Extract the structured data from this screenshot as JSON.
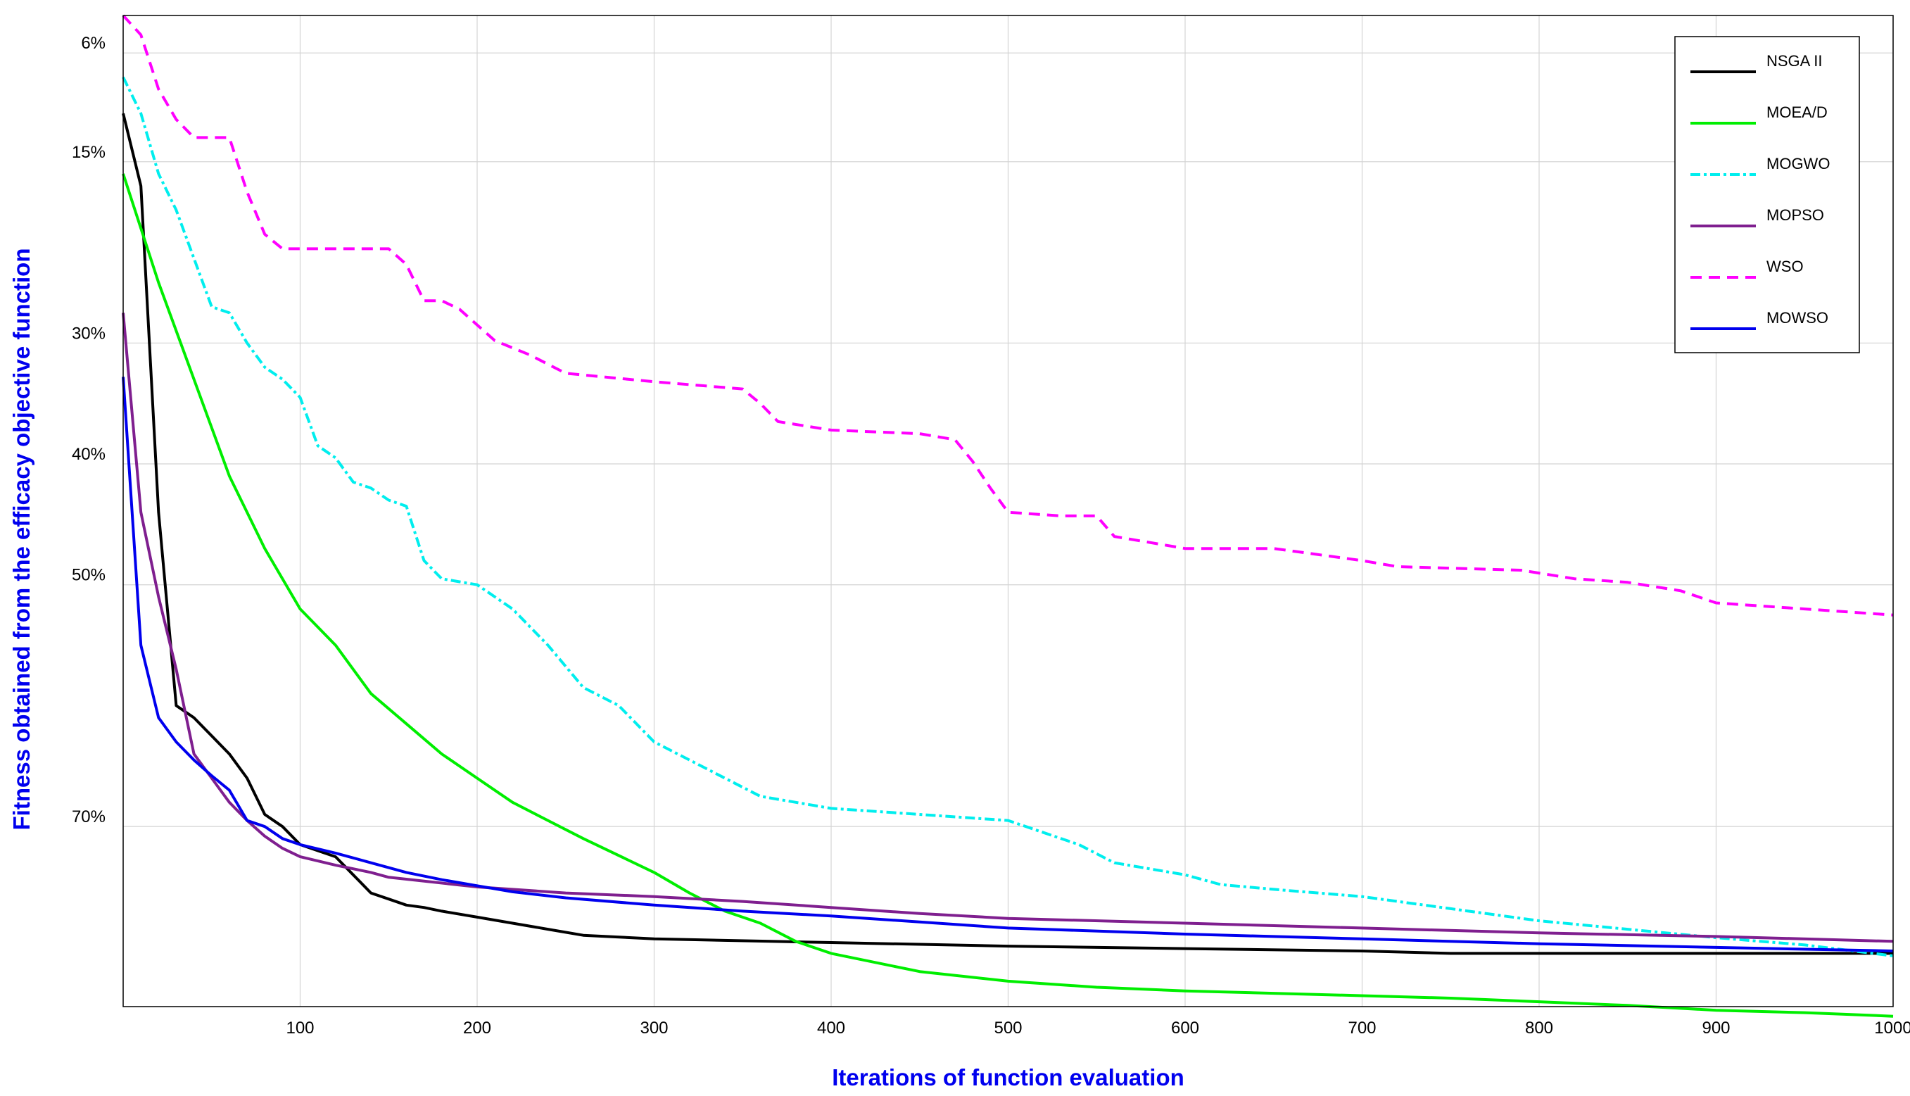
{
  "chart_data": {
    "type": "line",
    "title": "",
    "xlabel": "Iterations of function evaluation",
    "ylabel": "Fitness obtained from the efficacy objective function",
    "xlim": [
      0,
      1000
    ],
    "ylim": [
      2.9,
      84.9
    ],
    "y_inverted": true,
    "grid": true,
    "legend_position": "top-right",
    "x_ticks": [
      100,
      200,
      300,
      400,
      500,
      600,
      700,
      800,
      900,
      1000
    ],
    "y_ticks": [
      {
        "value": 6,
        "label": "6%"
      },
      {
        "value": 15,
        "label": "15%"
      },
      {
        "value": 30,
        "label": "30%"
      },
      {
        "value": 40,
        "label": "40%"
      },
      {
        "value": 50,
        "label": "50%"
      },
      {
        "value": 70,
        "label": "70%"
      }
    ],
    "series": [
      {
        "name": "NSGA II",
        "color": "#000000",
        "dash": "solid",
        "points": [
          [
            0,
            11
          ],
          [
            10,
            17
          ],
          [
            20,
            44
          ],
          [
            30,
            60
          ],
          [
            40,
            61
          ],
          [
            50,
            62.5
          ],
          [
            60,
            64
          ],
          [
            70,
            66
          ],
          [
            80,
            69
          ],
          [
            90,
            70
          ],
          [
            100,
            71.5
          ],
          [
            110,
            72
          ],
          [
            120,
            72.5
          ],
          [
            130,
            74
          ],
          [
            140,
            75.5
          ],
          [
            150,
            76
          ],
          [
            160,
            76.5
          ],
          [
            170,
            76.7
          ],
          [
            180,
            77
          ],
          [
            200,
            77.5
          ],
          [
            220,
            78
          ],
          [
            240,
            78.5
          ],
          [
            260,
            79
          ],
          [
            300,
            79.3
          ],
          [
            400,
            79.6
          ],
          [
            500,
            79.9
          ],
          [
            600,
            80.1
          ],
          [
            700,
            80.3
          ],
          [
            750,
            80.5
          ],
          [
            1000,
            80.5
          ]
        ]
      },
      {
        "name": "MOEA/D",
        "color": "#00ee00",
        "dash": "solid",
        "points": [
          [
            0,
            16
          ],
          [
            20,
            25
          ],
          [
            40,
            33
          ],
          [
            60,
            41
          ],
          [
            80,
            47
          ],
          [
            100,
            52
          ],
          [
            120,
            55
          ],
          [
            140,
            59
          ],
          [
            160,
            61.5
          ],
          [
            180,
            64
          ],
          [
            200,
            66
          ],
          [
            220,
            68
          ],
          [
            240,
            69.5
          ],
          [
            260,
            71
          ],
          [
            300,
            73.8
          ],
          [
            320,
            75.5
          ],
          [
            340,
            77
          ],
          [
            360,
            78
          ],
          [
            380,
            79.5
          ],
          [
            400,
            80.5
          ],
          [
            450,
            82
          ],
          [
            500,
            82.8
          ],
          [
            550,
            83.3
          ],
          [
            600,
            83.6
          ],
          [
            650,
            83.8
          ],
          [
            700,
            84
          ],
          [
            750,
            84.2
          ],
          [
            800,
            84.5
          ],
          [
            850,
            84.8
          ],
          [
            900,
            85.2
          ],
          [
            950,
            85.4
          ],
          [
            1000,
            85.7
          ]
        ]
      },
      {
        "name": "MOGWO",
        "color": "#00eeee",
        "dash": "dashdot",
        "points": [
          [
            0,
            8
          ],
          [
            10,
            11
          ],
          [
            20,
            16
          ],
          [
            30,
            19
          ],
          [
            40,
            23
          ],
          [
            50,
            27
          ],
          [
            60,
            27.5
          ],
          [
            70,
            30
          ],
          [
            80,
            32
          ],
          [
            90,
            33
          ],
          [
            100,
            34.5
          ],
          [
            110,
            38.5
          ],
          [
            120,
            39.5
          ],
          [
            130,
            41.5
          ],
          [
            140,
            42
          ],
          [
            150,
            43
          ],
          [
            160,
            43.5
          ],
          [
            170,
            48
          ],
          [
            180,
            49.5
          ],
          [
            200,
            50
          ],
          [
            220,
            52
          ],
          [
            240,
            55
          ],
          [
            260,
            58.5
          ],
          [
            280,
            60
          ],
          [
            300,
            63
          ],
          [
            320,
            64.5
          ],
          [
            340,
            66
          ],
          [
            360,
            67.5
          ],
          [
            400,
            68.5
          ],
          [
            450,
            69
          ],
          [
            500,
            69.5
          ],
          [
            540,
            71.5
          ],
          [
            560,
            73
          ],
          [
            600,
            74
          ],
          [
            620,
            74.8
          ],
          [
            650,
            75.2
          ],
          [
            700,
            75.8
          ],
          [
            750,
            76.8
          ],
          [
            800,
            77.8
          ],
          [
            850,
            78.5
          ],
          [
            900,
            79.2
          ],
          [
            950,
            79.8
          ],
          [
            1000,
            80.7
          ]
        ]
      },
      {
        "name": "MOPSO",
        "color": "#7f1f8f",
        "dash": "solid",
        "points": [
          [
            0,
            27.5
          ],
          [
            10,
            44
          ],
          [
            20,
            51
          ],
          [
            30,
            57
          ],
          [
            40,
            64
          ],
          [
            50,
            66
          ],
          [
            60,
            68
          ],
          [
            70,
            69.5
          ],
          [
            80,
            70.8
          ],
          [
            90,
            71.8
          ],
          [
            100,
            72.5
          ],
          [
            120,
            73.2
          ],
          [
            140,
            73.8
          ],
          [
            150,
            74.2
          ],
          [
            200,
            75
          ],
          [
            250,
            75.5
          ],
          [
            300,
            75.8
          ],
          [
            350,
            76.2
          ],
          [
            400,
            76.7
          ],
          [
            450,
            77.2
          ],
          [
            500,
            77.6
          ],
          [
            600,
            78
          ],
          [
            700,
            78.4
          ],
          [
            800,
            78.8
          ],
          [
            900,
            79.1
          ],
          [
            1000,
            79.5
          ]
        ]
      },
      {
        "name": "WSO",
        "color": "#ff00ff",
        "dash": "dashed",
        "points": [
          [
            0,
            2.9
          ],
          [
            10,
            4.5
          ],
          [
            20,
            9
          ],
          [
            30,
            11.5
          ],
          [
            40,
            13
          ],
          [
            50,
            13
          ],
          [
            60,
            13
          ],
          [
            70,
            17.5
          ],
          [
            80,
            21
          ],
          [
            90,
            22.2
          ],
          [
            100,
            22.2
          ],
          [
            150,
            22.2
          ],
          [
            160,
            23.5
          ],
          [
            170,
            26.5
          ],
          [
            180,
            26.5
          ],
          [
            190,
            27.2
          ],
          [
            200,
            28.5
          ],
          [
            210,
            29.8
          ],
          [
            230,
            31
          ],
          [
            250,
            32.5
          ],
          [
            300,
            33.2
          ],
          [
            350,
            33.8
          ],
          [
            360,
            35
          ],
          [
            370,
            36.5
          ],
          [
            400,
            37.2
          ],
          [
            450,
            37.5
          ],
          [
            470,
            38
          ],
          [
            480,
            39.8
          ],
          [
            490,
            42
          ],
          [
            500,
            44
          ],
          [
            530,
            44.3
          ],
          [
            550,
            44.3
          ],
          [
            560,
            46
          ],
          [
            600,
            47
          ],
          [
            650,
            47
          ],
          [
            700,
            48
          ],
          [
            720,
            48.5
          ],
          [
            790,
            48.8
          ],
          [
            820,
            49.5
          ],
          [
            850,
            49.8
          ],
          [
            880,
            50.5
          ],
          [
            890,
            51
          ],
          [
            900,
            51.5
          ],
          [
            950,
            52
          ],
          [
            1000,
            52.5
          ]
        ]
      },
      {
        "name": "MOWSO",
        "color": "#0000ee",
        "dash": "solid",
        "points": [
          [
            0,
            32.8
          ],
          [
            10,
            55
          ],
          [
            20,
            61
          ],
          [
            30,
            63
          ],
          [
            40,
            64.5
          ],
          [
            50,
            65.8
          ],
          [
            60,
            67
          ],
          [
            70,
            69.5
          ],
          [
            80,
            70
          ],
          [
            90,
            71
          ],
          [
            100,
            71.5
          ],
          [
            120,
            72.2
          ],
          [
            140,
            73
          ],
          [
            160,
            73.8
          ],
          [
            180,
            74.4
          ],
          [
            200,
            74.9
          ],
          [
            220,
            75.4
          ],
          [
            250,
            75.9
          ],
          [
            300,
            76.5
          ],
          [
            350,
            77
          ],
          [
            400,
            77.4
          ],
          [
            450,
            77.9
          ],
          [
            500,
            78.4
          ],
          [
            600,
            78.9
          ],
          [
            700,
            79.3
          ],
          [
            800,
            79.7
          ],
          [
            900,
            80
          ],
          [
            1000,
            80.3
          ]
        ]
      }
    ]
  }
}
